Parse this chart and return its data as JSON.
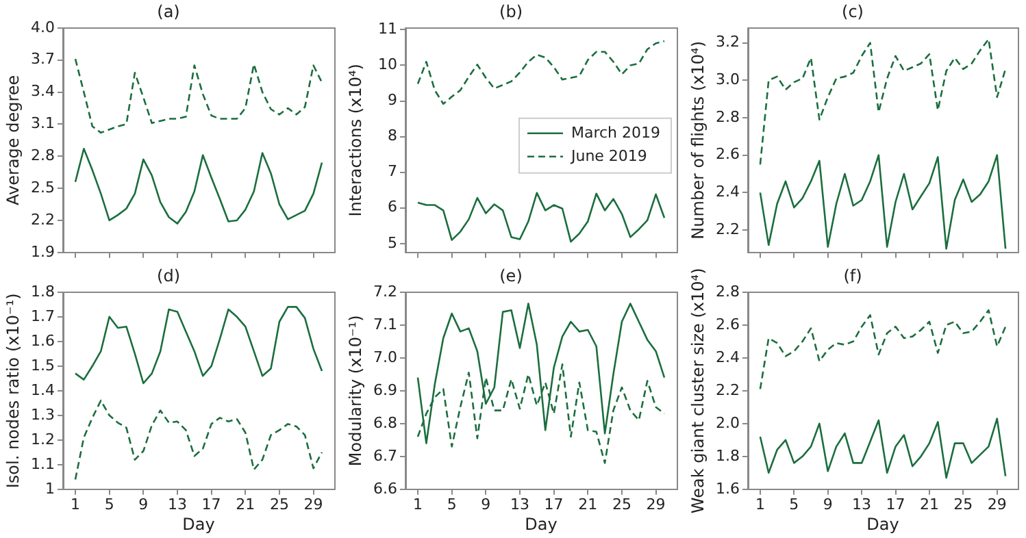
{
  "chart_data": [
    {
      "type": "line",
      "title": "(a)",
      "ylabel": "Average degree",
      "x": [
        1,
        2,
        3,
        4,
        5,
        6,
        7,
        8,
        9,
        10,
        11,
        12,
        13,
        14,
        15,
        16,
        17,
        18,
        19,
        20,
        21,
        22,
        23,
        24,
        25,
        26,
        27,
        28,
        29,
        30
      ],
      "xlim": [
        -0.45,
        31.45
      ],
      "xticks": [
        1,
        5,
        9,
        13,
        17,
        21,
        25,
        29
      ],
      "ylim": [
        1.9,
        4.0
      ],
      "yticks": [
        1.9,
        2.2,
        2.5,
        2.8,
        3.1,
        3.4,
        3.7,
        {
          "value": 4.0,
          "label": "4.0"
        }
      ],
      "tick_labels": "y",
      "grid": false,
      "legend": false,
      "series": [
        {
          "color": "#1b6e3e",
          "line_style": "solid",
          "values": [
            2.56,
            2.87,
            2.67,
            2.45,
            2.2,
            2.25,
            2.31,
            2.45,
            2.77,
            2.62,
            2.37,
            2.23,
            2.17,
            2.28,
            2.47,
            2.81,
            2.6,
            2.4,
            2.19,
            2.2,
            2.3,
            2.47,
            2.83,
            2.64,
            2.35,
            2.21,
            2.25,
            2.29,
            2.45,
            2.74
          ]
        },
        {
          "color": "#1b6e3e",
          "line_style": "dashed",
          "values": [
            3.71,
            3.4,
            3.08,
            3.02,
            3.05,
            3.08,
            3.1,
            3.58,
            3.35,
            3.11,
            3.13,
            3.15,
            3.15,
            3.17,
            3.65,
            3.38,
            3.18,
            3.15,
            3.15,
            3.15,
            3.25,
            3.66,
            3.4,
            3.24,
            3.19,
            3.25,
            3.19,
            3.26,
            3.65,
            3.49
          ]
        }
      ]
    },
    {
      "type": "line",
      "title": "(b)",
      "ylabel": "Interactions (x10⁴)",
      "x": [
        1,
        2,
        3,
        4,
        5,
        6,
        7,
        8,
        9,
        10,
        11,
        12,
        13,
        14,
        15,
        16,
        17,
        18,
        19,
        20,
        21,
        22,
        23,
        24,
        25,
        26,
        27,
        28,
        29,
        30
      ],
      "xlim": [
        -0.45,
        31.45
      ],
      "xticks": [
        1,
        5,
        9,
        13,
        17,
        21,
        25,
        29
      ],
      "ylim": [
        4.75,
        11.05
      ],
      "yticks": [
        5,
        6,
        7,
        8,
        9,
        10,
        11
      ],
      "tick_labels": "y",
      "grid": false,
      "legend": "center right",
      "series": [
        {
          "name": "March 2019",
          "color": "#1b6e3e",
          "line_style": "solid",
          "values": [
            6.15,
            6.08,
            6.08,
            5.93,
            5.1,
            5.33,
            5.68,
            6.28,
            5.85,
            6.1,
            5.93,
            5.18,
            5.12,
            5.62,
            6.42,
            5.93,
            6.08,
            5.98,
            5.05,
            5.28,
            5.62,
            6.4,
            5.93,
            6.25,
            5.83,
            5.18,
            5.4,
            5.65,
            6.38,
            5.72
          ]
        },
        {
          "name": "June 2019",
          "color": "#1b6e3e",
          "line_style": "dashed",
          "values": [
            9.48,
            10.1,
            9.3,
            8.92,
            9.12,
            9.3,
            9.68,
            10.02,
            9.65,
            9.35,
            9.45,
            9.55,
            9.8,
            10.1,
            10.3,
            10.22,
            9.95,
            9.6,
            9.65,
            9.7,
            10.15,
            10.38,
            10.38,
            10.1,
            9.75,
            10.0,
            10.05,
            10.45,
            10.62,
            10.68
          ]
        }
      ]
    },
    {
      "type": "line",
      "title": "(c)",
      "ylabel": "Number of flights (x10⁴)",
      "x": [
        1,
        2,
        3,
        4,
        5,
        6,
        7,
        8,
        9,
        10,
        11,
        12,
        13,
        14,
        15,
        16,
        17,
        18,
        19,
        20,
        21,
        22,
        23,
        24,
        25,
        26,
        27,
        28,
        29,
        30
      ],
      "xlim": [
        -0.45,
        31.45
      ],
      "xticks": [
        1,
        5,
        9,
        13,
        17,
        21,
        25,
        29
      ],
      "ylim": [
        2.08,
        3.28
      ],
      "yticks": [
        2.2,
        2.4,
        2.6,
        2.8,
        {
          "value": 3.0,
          "label": "3.0"
        },
        3.2
      ],
      "tick_labels": "y",
      "grid": false,
      "legend": false,
      "series": [
        {
          "color": "#1b6e3e",
          "line_style": "solid",
          "values": [
            2.4,
            2.12,
            2.34,
            2.46,
            2.32,
            2.37,
            2.46,
            2.57,
            2.11,
            2.34,
            2.5,
            2.33,
            2.36,
            2.46,
            2.6,
            2.11,
            2.35,
            2.5,
            2.31,
            2.38,
            2.45,
            2.59,
            2.1,
            2.36,
            2.47,
            2.35,
            2.39,
            2.46,
            2.6,
            2.1
          ]
        },
        {
          "color": "#1b6e3e",
          "line_style": "dashed",
          "values": [
            2.55,
            3.0,
            3.02,
            2.95,
            2.99,
            3.01,
            3.12,
            2.79,
            2.91,
            3.01,
            3.02,
            3.04,
            3.13,
            3.2,
            2.83,
            3.01,
            3.13,
            3.05,
            3.07,
            3.09,
            3.14,
            2.84,
            3.05,
            3.12,
            3.06,
            3.09,
            3.16,
            3.22,
            2.91,
            3.06
          ]
        }
      ]
    },
    {
      "type": "line",
      "title": "(d)",
      "xlabel": "Day",
      "ylabel": "Isol. nodes ratio (x10⁻¹)",
      "x": [
        1,
        2,
        3,
        4,
        5,
        6,
        7,
        8,
        9,
        10,
        11,
        12,
        13,
        14,
        15,
        16,
        17,
        18,
        19,
        20,
        21,
        22,
        23,
        24,
        25,
        26,
        27,
        28,
        29,
        30
      ],
      "xlim": [
        -0.45,
        31.45
      ],
      "xticks": [
        1,
        5,
        9,
        13,
        17,
        21,
        25,
        29
      ],
      "ylim": [
        1.0,
        1.8
      ],
      "yticks": [
        1,
        1.1,
        1.2,
        1.3,
        1.4,
        1.5,
        1.6,
        1.7,
        1.8
      ],
      "grid": false,
      "legend": false,
      "series": [
        {
          "color": "#1b6e3e",
          "line_style": "solid",
          "values": [
            1.47,
            1.445,
            1.5,
            1.56,
            1.7,
            1.655,
            1.66,
            1.55,
            1.43,
            1.47,
            1.56,
            1.73,
            1.72,
            1.64,
            1.56,
            1.46,
            1.5,
            1.61,
            1.73,
            1.7,
            1.66,
            1.56,
            1.46,
            1.49,
            1.68,
            1.74,
            1.74,
            1.695,
            1.57,
            1.48
          ]
        },
        {
          "color": "#1b6e3e",
          "line_style": "dashed",
          "values": [
            1.04,
            1.21,
            1.29,
            1.36,
            1.3,
            1.27,
            1.25,
            1.12,
            1.155,
            1.26,
            1.32,
            1.27,
            1.275,
            1.24,
            1.135,
            1.165,
            1.265,
            1.29,
            1.275,
            1.285,
            1.23,
            1.08,
            1.12,
            1.22,
            1.24,
            1.265,
            1.255,
            1.22,
            1.085,
            1.15
          ]
        }
      ]
    },
    {
      "type": "line",
      "title": "(e)",
      "xlabel": "Day",
      "ylabel": "Modularity (x10⁻¹)",
      "x": [
        1,
        2,
        3,
        4,
        5,
        6,
        7,
        8,
        9,
        10,
        11,
        12,
        13,
        14,
        15,
        16,
        17,
        18,
        19,
        20,
        21,
        22,
        23,
        24,
        25,
        26,
        27,
        28,
        29,
        30
      ],
      "xlim": [
        -0.45,
        31.45
      ],
      "xticks": [
        1,
        5,
        9,
        13,
        17,
        21,
        25,
        29
      ],
      "ylim": [
        6.6,
        7.2
      ],
      "yticks": [
        6.6,
        6.7,
        6.8,
        6.9,
        {
          "value": 7.0,
          "label": "7.0"
        },
        7.1,
        7.2
      ],
      "grid": false,
      "legend": false,
      "series": [
        {
          "color": "#1b6e3e",
          "line_style": "solid",
          "values": [
            6.94,
            6.74,
            6.92,
            7.06,
            7.135,
            7.08,
            7.09,
            7.02,
            6.86,
            6.91,
            7.14,
            7.145,
            7.03,
            7.165,
            7.04,
            6.78,
            6.97,
            7.065,
            7.11,
            7.08,
            7.085,
            7.035,
            6.77,
            6.95,
            7.11,
            7.165,
            7.11,
            7.055,
            7.02,
            6.94
          ]
        },
        {
          "color": "#1b6e3e",
          "line_style": "dashed",
          "values": [
            6.76,
            6.83,
            6.88,
            6.905,
            6.73,
            6.85,
            6.955,
            6.755,
            6.94,
            6.84,
            6.84,
            6.935,
            6.845,
            6.95,
            6.855,
            6.925,
            6.83,
            6.98,
            6.76,
            6.925,
            6.78,
            6.775,
            6.68,
            6.84,
            6.91,
            6.84,
            6.81,
            6.93,
            6.85,
            6.83
          ]
        }
      ]
    },
    {
      "type": "line",
      "title": "(f)",
      "xlabel": "Day",
      "ylabel": "Weak giant cluster size (x10⁴)",
      "x": [
        1,
        2,
        3,
        4,
        5,
        6,
        7,
        8,
        9,
        10,
        11,
        12,
        13,
        14,
        15,
        16,
        17,
        18,
        19,
        20,
        21,
        22,
        23,
        24,
        25,
        26,
        27,
        28,
        29,
        30
      ],
      "xlim": [
        -0.45,
        31.45
      ],
      "xticks": [
        1,
        5,
        9,
        13,
        17,
        21,
        25,
        29
      ],
      "ylim": [
        1.6,
        2.8
      ],
      "yticks": [
        1.6,
        1.8,
        {
          "value": 2.0,
          "label": "2.0"
        },
        2.2,
        2.4,
        2.6,
        2.8
      ],
      "grid": false,
      "legend": false,
      "series": [
        {
          "color": "#1b6e3e",
          "line_style": "solid",
          "values": [
            1.92,
            1.7,
            1.84,
            1.9,
            1.76,
            1.8,
            1.86,
            2.0,
            1.71,
            1.86,
            1.94,
            1.76,
            1.76,
            1.89,
            2.02,
            1.7,
            1.86,
            1.93,
            1.74,
            1.8,
            1.88,
            2.01,
            1.67,
            1.88,
            1.88,
            1.76,
            1.81,
            1.86,
            2.03,
            1.68
          ]
        },
        {
          "color": "#1b6e3e",
          "line_style": "dashed",
          "values": [
            2.21,
            2.52,
            2.49,
            2.41,
            2.44,
            2.5,
            2.58,
            2.38,
            2.45,
            2.49,
            2.48,
            2.5,
            2.59,
            2.66,
            2.42,
            2.55,
            2.59,
            2.52,
            2.53,
            2.57,
            2.62,
            2.43,
            2.6,
            2.62,
            2.55,
            2.56,
            2.62,
            2.69,
            2.47,
            2.59
          ]
        }
      ]
    }
  ]
}
